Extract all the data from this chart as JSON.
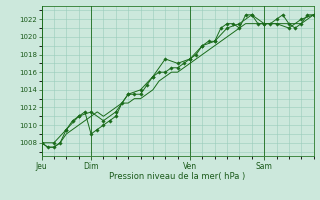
{
  "background_color": "#cce8dc",
  "plot_bg_color": "#cce8dc",
  "grid_color": "#99ccbb",
  "line_color": "#1a6b1a",
  "marker_color": "#1a6b1a",
  "xlabel": "Pression niveau de la mer( hPa )",
  "ylim": [
    1006.5,
    1023.5
  ],
  "yticks": [
    1008,
    1010,
    1012,
    1014,
    1016,
    1018,
    1020,
    1022
  ],
  "day_labels": [
    "Jeu",
    "Dim",
    "Ven",
    "Sam"
  ],
  "day_positions": [
    0,
    48,
    144,
    216
  ],
  "vline_positions": [
    0,
    48,
    144,
    216
  ],
  "total_hours": 264,
  "series1_x": [
    0,
    6,
    12,
    18,
    24,
    30,
    36,
    42,
    48,
    54,
    60,
    66,
    72,
    78,
    84,
    90,
    96,
    102,
    108,
    114,
    120,
    126,
    132,
    138,
    144,
    150,
    156,
    162,
    168,
    174,
    180,
    186,
    192,
    198,
    204,
    210,
    216,
    222,
    228,
    234,
    240,
    246,
    252,
    258,
    264
  ],
  "series1_y": [
    1008.0,
    1007.5,
    1007.5,
    1008.0,
    1009.5,
    1010.5,
    1011.0,
    1011.5,
    1009.0,
    1009.5,
    1010.0,
    1010.5,
    1011.0,
    1012.5,
    1013.5,
    1013.5,
    1013.5,
    1014.5,
    1015.5,
    1016.0,
    1016.0,
    1016.5,
    1016.5,
    1017.0,
    1017.5,
    1018.0,
    1019.0,
    1019.5,
    1019.5,
    1021.0,
    1021.5,
    1021.5,
    1021.0,
    1022.5,
    1022.5,
    1021.5,
    1021.5,
    1021.5,
    1022.0,
    1022.5,
    1021.5,
    1021.0,
    1021.5,
    1022.5,
    1022.5
  ],
  "series2_x": [
    0,
    6,
    12,
    18,
    24,
    30,
    36,
    42,
    48,
    54,
    60,
    66,
    72,
    78,
    84,
    90,
    96,
    102,
    108,
    114,
    120,
    126,
    132,
    138,
    144,
    150,
    156,
    162,
    168,
    174,
    180,
    186,
    192,
    198,
    204,
    210,
    216,
    222,
    228,
    234,
    240,
    246,
    252,
    258,
    264
  ],
  "series2_y": [
    1008.0,
    1007.5,
    1007.5,
    1008.0,
    1009.0,
    1009.5,
    1010.0,
    1010.5,
    1011.0,
    1011.5,
    1011.0,
    1011.5,
    1012.0,
    1012.5,
    1012.5,
    1013.0,
    1013.0,
    1013.5,
    1014.0,
    1015.0,
    1015.5,
    1016.0,
    1016.0,
    1016.5,
    1017.0,
    1017.5,
    1018.0,
    1018.5,
    1019.0,
    1019.5,
    1020.0,
    1020.5,
    1021.0,
    1021.5,
    1021.5,
    1021.5,
    1021.5,
    1021.5,
    1021.5,
    1021.5,
    1021.5,
    1021.5,
    1021.5,
    1022.0,
    1022.5
  ],
  "series3_x": [
    0,
    12,
    24,
    36,
    48,
    60,
    72,
    84,
    96,
    108,
    120,
    132,
    144,
    156,
    168,
    180,
    192,
    204,
    216,
    228,
    240,
    252,
    264
  ],
  "series3_y": [
    1008.0,
    1008.0,
    1009.5,
    1011.0,
    1011.5,
    1010.5,
    1011.5,
    1013.5,
    1014.0,
    1015.5,
    1017.5,
    1017.0,
    1017.5,
    1019.0,
    1019.5,
    1021.0,
    1021.5,
    1022.5,
    1021.5,
    1021.5,
    1021.0,
    1022.0,
    1022.5
  ]
}
